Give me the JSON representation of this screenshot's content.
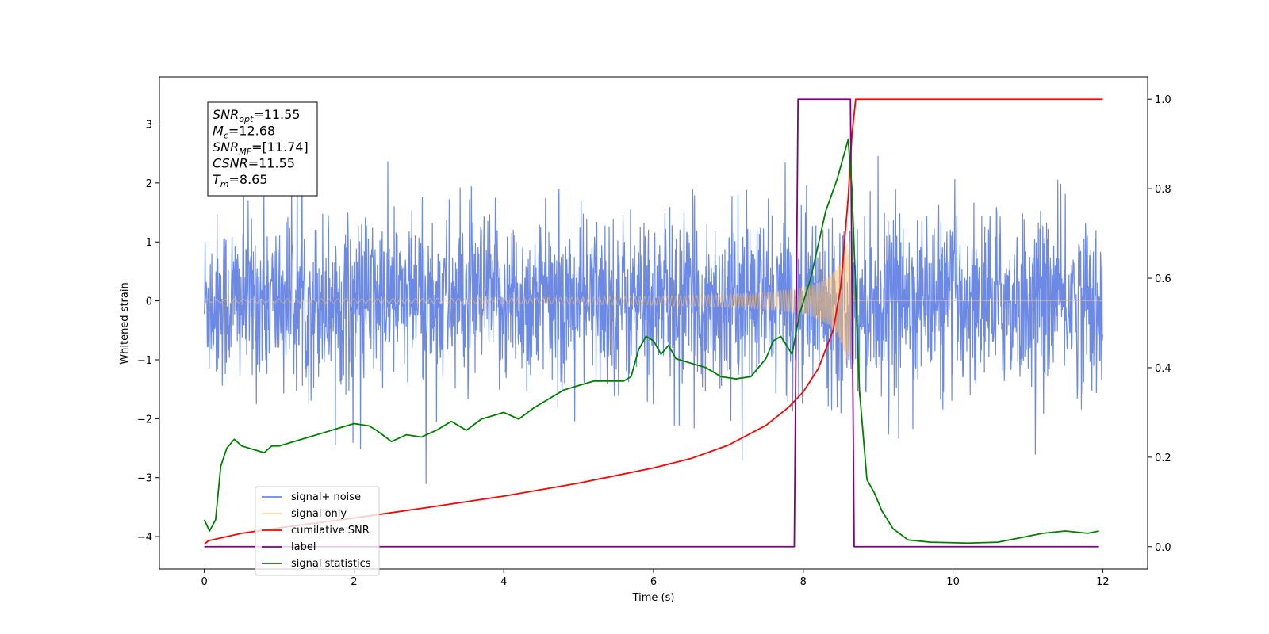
{
  "chart_data": {
    "type": "line",
    "xlabel": "Time (s)",
    "ylabel": "Whitened strain",
    "xlim": [
      -0.6,
      12.6
    ],
    "ylim": [
      -4.55,
      3.8
    ],
    "ylim_right": [
      -0.05,
      1.05
    ],
    "xticks": [
      0,
      2,
      4,
      6,
      8,
      10,
      12
    ],
    "yticks": [
      -4,
      -3,
      -2,
      -1,
      0,
      1,
      2,
      3
    ],
    "yticks_right": [
      0.0,
      0.2,
      0.4,
      0.6,
      0.8,
      1.0
    ],
    "xtick_labels": [
      "0",
      "2",
      "4",
      "6",
      "8",
      "10",
      "12"
    ],
    "ytick_labels": [
      "−4",
      "−3",
      "−2",
      "−1",
      "0",
      "1",
      "2",
      "3"
    ],
    "ytick_right_labels": [
      "0.0",
      "0.2",
      "0.4",
      "0.6",
      "0.8",
      "1.0"
    ],
    "legend_position": "lower-left",
    "annotation": {
      "lines": [
        {
          "var": "SNR",
          "sub": "opt",
          "value": "=11.55"
        },
        {
          "var": "M",
          "sub": "c",
          "value": "=12.68"
        },
        {
          "var": "SNR",
          "sub": "MF",
          "value": "=[11.74]"
        },
        {
          "var": "CSNR",
          "sub": "",
          "value": "=11.55"
        },
        {
          "var": "T",
          "sub": "m",
          "value": "=8.65"
        }
      ]
    },
    "series": [
      {
        "name": "signal+ noise",
        "color": "#6b89e5",
        "axis": "left",
        "style": "noise",
        "t_range": [
          0,
          12
        ],
        "typical_range": [
          -1.6,
          1.6
        ],
        "peak_range": [
          -3.3,
          3.35
        ]
      },
      {
        "name": "signal only",
        "color": "#ffbf66",
        "axis": "left",
        "style": "chirp",
        "t_range": [
          0,
          8.65
        ],
        "amplitude_start": 0.03,
        "amplitude_peak": 1.0,
        "merger_time": 8.65
      },
      {
        "name": "cumilative SNR",
        "color": "#ff0000",
        "axis": "right",
        "x": [
          0,
          0.05,
          0.5,
          1,
          2,
          3,
          4,
          5,
          6,
          6.5,
          7,
          7.5,
          7.8,
          8.0,
          8.2,
          8.4,
          8.5,
          8.6,
          8.65,
          8.7,
          12
        ],
        "y": [
          0.005,
          0.013,
          0.03,
          0.042,
          0.064,
          0.088,
          0.113,
          0.142,
          0.176,
          0.197,
          0.227,
          0.271,
          0.311,
          0.346,
          0.398,
          0.484,
          0.58,
          0.78,
          0.92,
          1.0,
          1.0
        ]
      },
      {
        "name": "label",
        "color": "#800080",
        "axis": "right",
        "x": [
          0,
          7.88,
          7.93,
          8.63,
          8.68,
          11.95
        ],
        "y": [
          0,
          0,
          1,
          1,
          0,
          0
        ]
      },
      {
        "name": "signal statistics",
        "color": "#008000",
        "axis": "right",
        "x": [
          0,
          0.07,
          0.15,
          0.22,
          0.3,
          0.4,
          0.5,
          0.6,
          0.7,
          0.8,
          0.9,
          1.0,
          1.2,
          1.4,
          1.6,
          1.8,
          2.0,
          2.2,
          2.3,
          2.5,
          2.7,
          2.9,
          3.1,
          3.3,
          3.5,
          3.7,
          3.9,
          4.0,
          4.2,
          4.4,
          4.6,
          4.8,
          5.0,
          5.2,
          5.4,
          5.6,
          5.7,
          5.8,
          5.9,
          6.0,
          6.1,
          6.2,
          6.3,
          6.5,
          6.7,
          6.9,
          7.1,
          7.3,
          7.5,
          7.6,
          7.7,
          7.85,
          7.95,
          8.1,
          8.3,
          8.45,
          8.6,
          8.65,
          8.75,
          8.85,
          8.95,
          9.05,
          9.2,
          9.4,
          9.7,
          10.2,
          10.6,
          10.9,
          11.2,
          11.5,
          11.8,
          11.95
        ],
        "y": [
          0.06,
          0.035,
          0.06,
          0.18,
          0.22,
          0.24,
          0.225,
          0.22,
          0.215,
          0.21,
          0.225,
          0.225,
          0.235,
          0.245,
          0.255,
          0.265,
          0.275,
          0.27,
          0.26,
          0.235,
          0.25,
          0.245,
          0.26,
          0.28,
          0.26,
          0.285,
          0.295,
          0.3,
          0.285,
          0.31,
          0.33,
          0.35,
          0.36,
          0.37,
          0.37,
          0.37,
          0.38,
          0.44,
          0.47,
          0.46,
          0.43,
          0.45,
          0.42,
          0.41,
          0.4,
          0.38,
          0.375,
          0.38,
          0.42,
          0.46,
          0.47,
          0.43,
          0.52,
          0.6,
          0.75,
          0.82,
          0.91,
          0.8,
          0.35,
          0.15,
          0.12,
          0.08,
          0.04,
          0.015,
          0.01,
          0.008,
          0.01,
          0.02,
          0.03,
          0.035,
          0.03,
          0.035
        ]
      }
    ]
  }
}
